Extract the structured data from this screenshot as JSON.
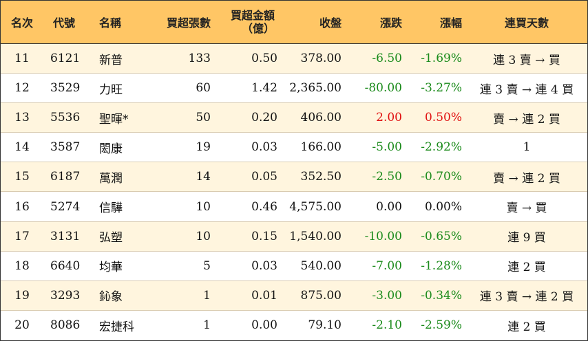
{
  "header": {
    "rank": "名次",
    "code": "代號",
    "name": "名稱",
    "net_buy_lots": "買超張數",
    "net_buy_amount_line1": "買超金額",
    "net_buy_amount_line2": "（億）",
    "close": "收盤",
    "change": "漲跌",
    "change_pct": "漲幅",
    "consecutive_days": "連買天數"
  },
  "colors": {
    "header_bg": "#ffc665",
    "odd_row_bg": "#fff5de",
    "even_row_bg": "#ffffff",
    "down": "#1a8a1a",
    "up": "#e01010"
  },
  "rows": [
    {
      "rank": "11",
      "code": "6121",
      "name": "新普",
      "lots": "133",
      "amount": "0.50",
      "close": "378.00",
      "change": "-6.50",
      "pct": "-1.69%",
      "days": "連 3 賣 → 買",
      "dir": "green"
    },
    {
      "rank": "12",
      "code": "3529",
      "name": "力旺",
      "lots": "60",
      "amount": "1.42",
      "close": "2,365.00",
      "change": "-80.00",
      "pct": "-3.27%",
      "days": "連 3 賣 → 連 4 買",
      "dir": "green"
    },
    {
      "rank": "13",
      "code": "5536",
      "name": "聖暉*",
      "lots": "50",
      "amount": "0.20",
      "close": "406.00",
      "change": "2.00",
      "pct": "0.50%",
      "days": "賣 → 連 2 買",
      "dir": "red"
    },
    {
      "rank": "14",
      "code": "3587",
      "name": "閎康",
      "lots": "19",
      "amount": "0.03",
      "close": "166.00",
      "change": "-5.00",
      "pct": "-2.92%",
      "days": "1",
      "dir": "green"
    },
    {
      "rank": "15",
      "code": "6187",
      "name": "萬潤",
      "lots": "14",
      "amount": "0.05",
      "close": "352.50",
      "change": "-2.50",
      "pct": "-0.70%",
      "days": "賣 → 連 2 買",
      "dir": "green"
    },
    {
      "rank": "16",
      "code": "5274",
      "name": "信驊",
      "lots": "10",
      "amount": "0.46",
      "close": "4,575.00",
      "change": "0.00",
      "pct": "0.00%",
      "days": "賣 → 買",
      "dir": "black"
    },
    {
      "rank": "17",
      "code": "3131",
      "name": "弘塑",
      "lots": "10",
      "amount": "0.15",
      "close": "1,540.00",
      "change": "-10.00",
      "pct": "-0.65%",
      "days": "連 9 買",
      "dir": "green"
    },
    {
      "rank": "18",
      "code": "6640",
      "name": "均華",
      "lots": "5",
      "amount": "0.03",
      "close": "540.00",
      "change": "-7.00",
      "pct": "-1.28%",
      "days": "連 2 買",
      "dir": "green"
    },
    {
      "rank": "19",
      "code": "3293",
      "name": "鈊象",
      "lots": "1",
      "amount": "0.01",
      "close": "875.00",
      "change": "-3.00",
      "pct": "-0.34%",
      "days": "連 3 賣 → 連 2 買",
      "dir": "green"
    },
    {
      "rank": "20",
      "code": "8086",
      "name": "宏捷科",
      "lots": "1",
      "amount": "0.00",
      "close": "79.10",
      "change": "-2.10",
      "pct": "-2.59%",
      "days": "連 2 買",
      "dir": "green"
    }
  ]
}
